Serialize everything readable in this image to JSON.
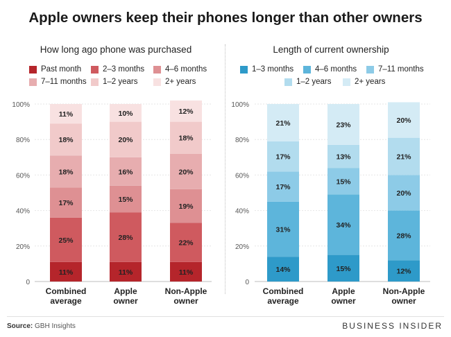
{
  "title": "Apple owners keep their phones longer than other owners",
  "source_label": "Source:",
  "source_value": "GBH Insights",
  "brand": "BUSINESS INSIDER",
  "chart_data": [
    {
      "type": "stacked-bar",
      "title": "How long ago phone was purchased",
      "categories": [
        "Combined average",
        "Apple owner",
        "Non-Apple owner"
      ],
      "y_ticks": [
        "0",
        "20%",
        "40%",
        "60%",
        "80%",
        "100%"
      ],
      "ylim": [
        0,
        100
      ],
      "series": [
        {
          "name": "Past month",
          "color": "#b5252b",
          "values": [
            11,
            11,
            11
          ],
          "labels": [
            "11%",
            "11%",
            "11%"
          ]
        },
        {
          "name": "2–3 months",
          "color": "#cf5a5f",
          "values": [
            25,
            28,
            22
          ],
          "labels": [
            "25%",
            "28%",
            "22%"
          ]
        },
        {
          "name": "4–6 months",
          "color": "#de9093",
          "values": [
            17,
            15,
            19
          ],
          "labels": [
            "17%",
            "15%",
            "19%"
          ]
        },
        {
          "name": "7–11 months",
          "color": "#e7adaf",
          "values": [
            18,
            16,
            20
          ],
          "labels": [
            "18%",
            "16%",
            "20%"
          ]
        },
        {
          "name": "1–2 years",
          "color": "#f1caca",
          "values": [
            18,
            20,
            18
          ],
          "labels": [
            "18%",
            "20%",
            "18%"
          ]
        },
        {
          "name": "2+ years",
          "color": "#f8e1e1",
          "values": [
            11,
            10,
            12
          ],
          "labels": [
            "11%",
            "10%",
            "12%"
          ]
        }
      ]
    },
    {
      "type": "stacked-bar",
      "title": "Length of current ownership",
      "categories": [
        "Combined average",
        "Apple owner",
        "Non-Apple owner"
      ],
      "y_ticks": [
        "0",
        "20%",
        "40%",
        "60%",
        "80%",
        "100%"
      ],
      "ylim": [
        0,
        100
      ],
      "series": [
        {
          "name": "1–3 months",
          "color": "#2e9ac9",
          "values": [
            14,
            15,
            12
          ],
          "labels": [
            "14%",
            "15%",
            "12%"
          ]
        },
        {
          "name": "4–6 months",
          "color": "#5db5db",
          "values": [
            31,
            34,
            28
          ],
          "labels": [
            "31%",
            "34%",
            "28%"
          ]
        },
        {
          "name": "7–11 months",
          "color": "#8dcbe7",
          "values": [
            17,
            15,
            20
          ],
          "labels": [
            "17%",
            "15%",
            "20%"
          ]
        },
        {
          "name": "1–2 years",
          "color": "#b2dcee",
          "values": [
            17,
            13,
            21
          ],
          "labels": [
            "17%",
            "13%",
            "21%"
          ]
        },
        {
          "name": "2+ years",
          "color": "#d4ebf5",
          "values": [
            21,
            23,
            20
          ],
          "labels": [
            "21%",
            "23%",
            "20%"
          ]
        }
      ]
    }
  ]
}
